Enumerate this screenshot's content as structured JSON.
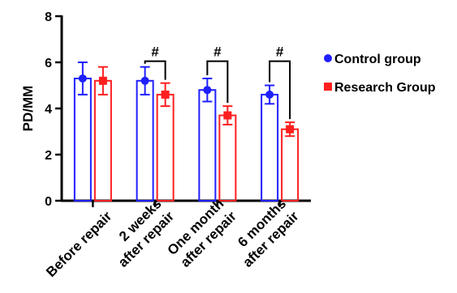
{
  "chart_data": {
    "type": "bar",
    "ylabel": "PD/MM",
    "ylim": [
      0,
      8
    ],
    "yticks": [
      "0",
      "2",
      "4",
      "6",
      "8"
    ],
    "categories": [
      [
        "Before repair"
      ],
      [
        "2 weeks",
        "after repair"
      ],
      [
        "One month",
        "after repair"
      ],
      [
        "6 months",
        "after repair"
      ]
    ],
    "series": [
      {
        "name": "Control group",
        "color": "#1f1fff",
        "marker": "circle",
        "values": [
          5.3,
          5.2,
          4.8,
          4.6
        ],
        "errors": [
          0.7,
          0.6,
          0.5,
          0.4
        ]
      },
      {
        "name": "Research Group",
        "color": "#ff1f1f",
        "marker": "square",
        "values": [
          5.2,
          4.6,
          3.7,
          3.1
        ],
        "errors": [
          0.6,
          0.5,
          0.4,
          0.3
        ]
      }
    ],
    "significance": [
      {
        "category_index": 1,
        "label": "#"
      },
      {
        "category_index": 2,
        "label": "#"
      },
      {
        "category_index": 3,
        "label": "#"
      }
    ],
    "legend_position": "right"
  }
}
